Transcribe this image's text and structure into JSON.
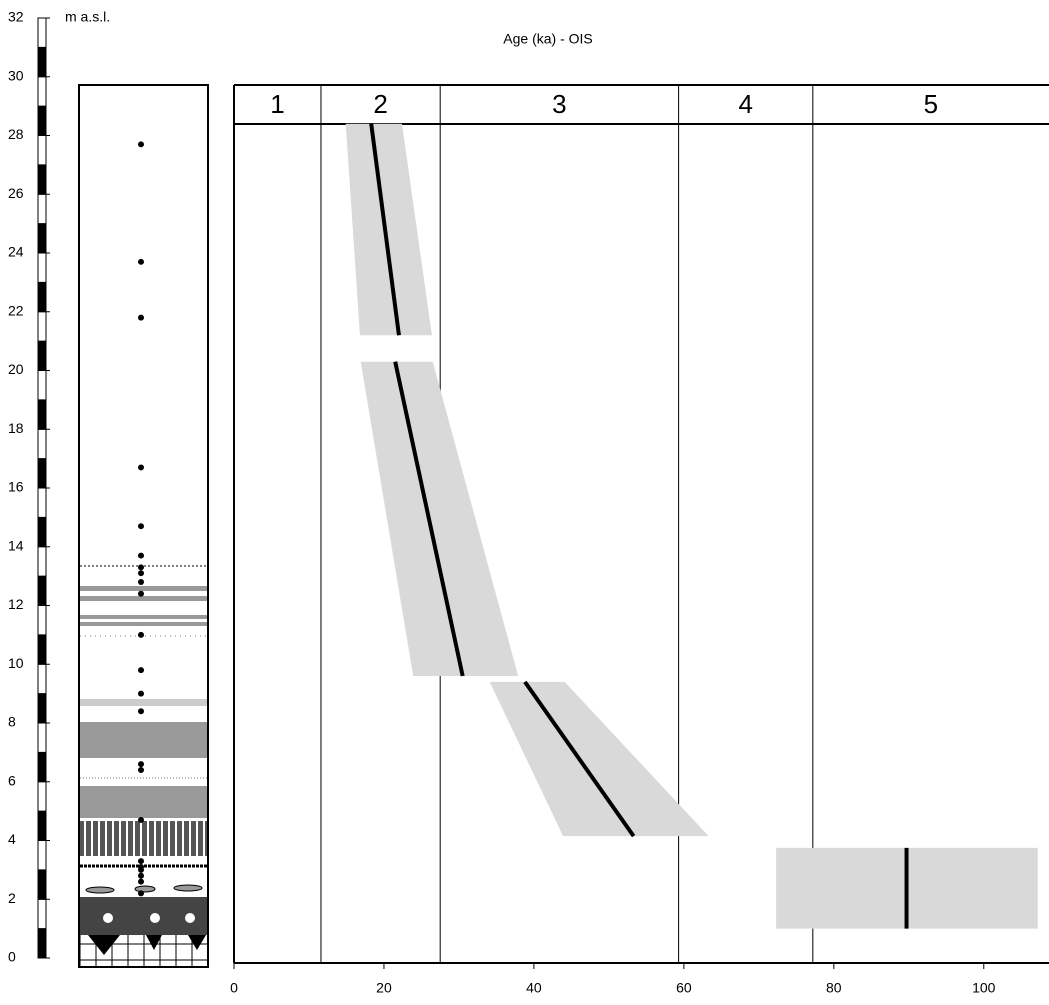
{
  "chart_data": {
    "type": "age-depth",
    "title": "Age (ka) - OIS",
    "ylabel": "m a.s.l.",
    "xlim": [
      0,
      108.7
    ],
    "xticks": [
      0,
      20,
      40,
      60,
      80,
      100
    ],
    "ylim": [
      0,
      32
    ],
    "yticks": [
      0,
      2,
      4,
      6,
      8,
      10,
      12,
      14,
      16,
      18,
      20,
      22,
      24,
      26,
      28,
      30,
      32
    ],
    "stages": [
      "1",
      "2",
      "3",
      "4",
      "5"
    ],
    "stage_boundaries": [
      11.6,
      27.5,
      59.3,
      77.2
    ],
    "line_color": "#000000",
    "band_color": "#d9d9da",
    "segments": [
      {
        "depth": [
          28.4,
          21.2
        ],
        "age": [
          18.3,
          22.0
        ],
        "age_min": [
          14.9,
          16.8
        ],
        "age_max": [
          22.4,
          26.4
        ]
      },
      {
        "depth": [
          20.3,
          9.6
        ],
        "age": [
          21.5,
          30.5
        ],
        "age_min": [
          16.9,
          23.9
        ],
        "age_max": [
          26.5,
          37.9
        ]
      },
      {
        "depth": [
          9.4,
          4.15
        ],
        "age": [
          38.8,
          53.3
        ],
        "age_min": [
          34.1,
          43.9
        ],
        "age_max": [
          44.1,
          63.3
        ]
      },
      {
        "depth": [
          3.75,
          1.0
        ],
        "age": [
          89.7,
          89.7
        ],
        "age_min": [
          72.3,
          72.3
        ],
        "age_max": [
          107.2,
          107.2
        ]
      }
    ],
    "samples": [
      27.7,
      23.7,
      21.8,
      16.7,
      14.7,
      13.7,
      13.3,
      13.1,
      12.8,
      12.4,
      11.0,
      9.8,
      9.0,
      8.4,
      6.6,
      6.4,
      4.7,
      3.3,
      3.1,
      3.0,
      2.8,
      2.6,
      2.2
    ]
  }
}
